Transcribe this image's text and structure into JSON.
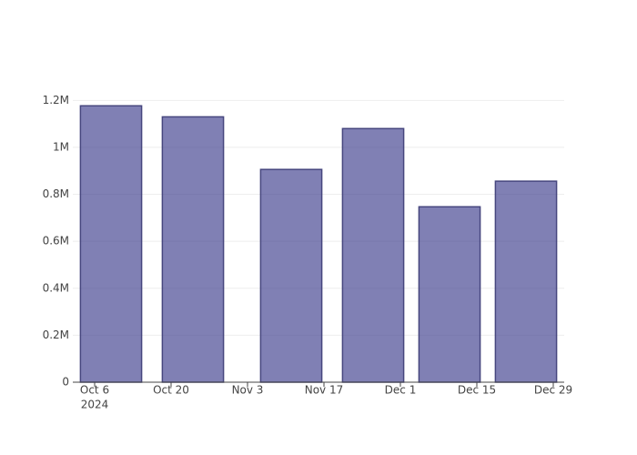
{
  "chart_data": {
    "type": "bar",
    "x": [
      "2024-10-09",
      "2024-10-24",
      "2024-11-11",
      "2024-11-26",
      "2024-12-10",
      "2024-12-24"
    ],
    "values": [
      1177000,
      1130000,
      906000,
      1080000,
      747000,
      856000
    ],
    "color": "rgba(60,60,140,0.65)",
    "edge_color": "#46467e",
    "xlim": [
      "2024-10-02",
      "2024-12-31"
    ],
    "xticks": [
      {
        "value": "2024-10-06",
        "label": "Oct 6"
      },
      {
        "value": "2024-10-20",
        "label": "Oct 20"
      },
      {
        "value": "2024-11-03",
        "label": "Nov 3"
      },
      {
        "value": "2024-11-17",
        "label": "Nov 17"
      },
      {
        "value": "2024-12-01",
        "label": "Dec 1"
      },
      {
        "value": "2024-12-15",
        "label": "Dec 15"
      },
      {
        "value": "2024-12-29",
        "label": "Dec 29"
      }
    ],
    "x_year_label": "2024",
    "ylim": [
      0,
      1240000
    ],
    "yticks": [
      0,
      {
        "value": 200000,
        "label": "0.2M"
      },
      {
        "value": 400000,
        "label": "0.4M"
      },
      {
        "value": 600000,
        "label": "0.6M"
      },
      {
        "value": 800000,
        "label": "0.8M"
      },
      {
        "value": 1000000,
        "label": "1M"
      },
      {
        "value": 1200000,
        "label": "1.2M"
      }
    ],
    "grid": true
  }
}
